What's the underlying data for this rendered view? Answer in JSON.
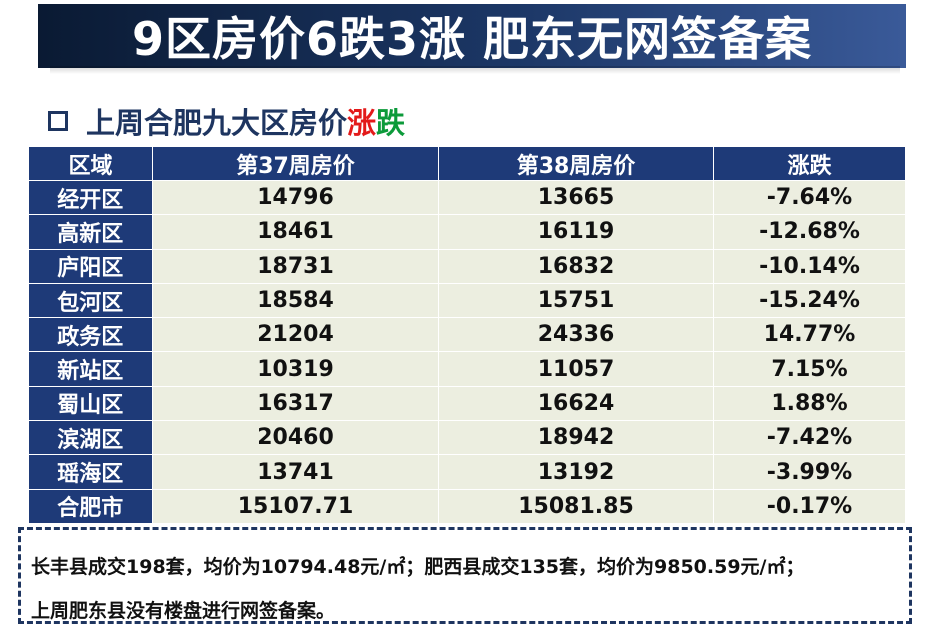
{
  "title": "9区房价6跌3涨 肥东无网签备案",
  "subtitle": {
    "text_main": "上周合肥九大区房价",
    "text_rise": "涨",
    "text_fall": "跌"
  },
  "table": {
    "headers": [
      "区域",
      "第37周房价",
      "第38周房价",
      "涨跌"
    ],
    "rows": [
      {
        "region": "经开区",
        "w37": "14796",
        "w38": "13665",
        "change": "-7.64%",
        "dir": "fall"
      },
      {
        "region": "高新区",
        "w37": "18461",
        "w38": "16119",
        "change": "-12.68%",
        "dir": "fall"
      },
      {
        "region": "庐阳区",
        "w37": "18731",
        "w38": "16832",
        "change": "-10.14%",
        "dir": "fall"
      },
      {
        "region": "包河区",
        "w37": "18584",
        "w38": "15751",
        "change": "-15.24%",
        "dir": "fall"
      },
      {
        "region": "政务区",
        "w37": "21204",
        "w38": "24336",
        "change": "14.77%",
        "dir": "rise"
      },
      {
        "region": "新站区",
        "w37": "10319",
        "w38": "11057",
        "change": "7.15%",
        "dir": "rise"
      },
      {
        "region": "蜀山区",
        "w37": "16317",
        "w38": "16624",
        "change": "1.88%",
        "dir": "rise"
      },
      {
        "region": "滨湖区",
        "w37": "20460",
        "w38": "18942",
        "change": "-7.42%",
        "dir": "fall"
      },
      {
        "region": "瑶海区",
        "w37": "13741",
        "w38": "13192",
        "change": "-3.99%",
        "dir": "fall"
      },
      {
        "region": "合肥市",
        "w37": "15107.71",
        "w38": "15081.85",
        "change": "-0.17%",
        "dir": "fall"
      }
    ]
  },
  "note": {
    "line1": "长丰县成交198套，均价为10794.48元/㎡；肥西县成交135套，均价为9850.59元/㎡；",
    "line2": "上周肥东县没有楼盘进行网签备案。"
  },
  "colors": {
    "header_bg": "#1e3a78",
    "rise": "#e31a1a",
    "fall": "#0c9a3a",
    "cell_bg": "#eceee0"
  }
}
